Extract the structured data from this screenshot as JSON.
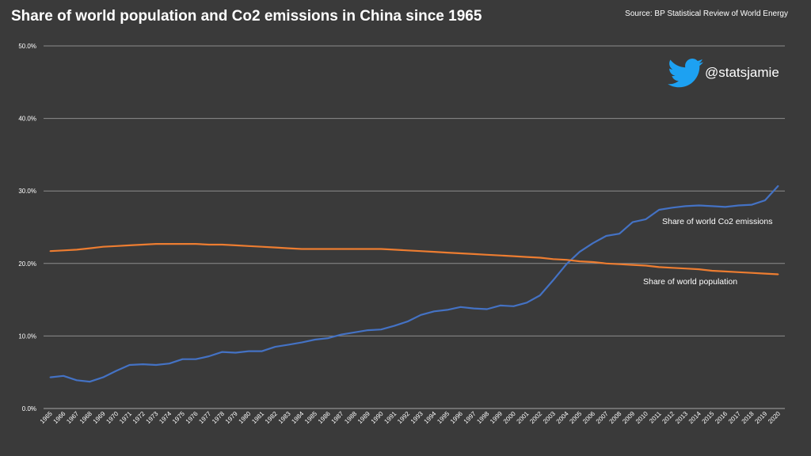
{
  "title": "Share of world population and Co2 emissions in China since 1965",
  "source": "Source: BP Statistical Review of World Energy",
  "handle": "@statsjamie",
  "icon": "twitter-bird-icon",
  "colors": {
    "background": "#3a3a3a",
    "emissions": "#4472c4",
    "population": "#ed7d31",
    "grid": "#8c8c8c",
    "text": "#ffffff",
    "bird": "#1da1f2"
  },
  "chart_data": {
    "type": "line",
    "title": "Share of world population and Co2 emissions in China since 1965",
    "xlabel": "",
    "ylabel": "",
    "ylim": [
      0,
      50
    ],
    "grid": true,
    "yticks": [
      "0.0%",
      "10.0%",
      "20.0%",
      "30.0%",
      "40.0%",
      "50.0%"
    ],
    "x": [
      "1965",
      "1966",
      "1967",
      "1968",
      "1969",
      "1970",
      "1971",
      "1972",
      "1973",
      "1974",
      "1975",
      "1976",
      "1977",
      "1978",
      "1979",
      "1980",
      "1981",
      "1982",
      "1983",
      "1984",
      "1985",
      "1986",
      "1987",
      "1988",
      "1989",
      "1990",
      "1991",
      "1992",
      "1993",
      "1994",
      "1995",
      "1996",
      "1997",
      "1998",
      "1999",
      "2000",
      "2001",
      "2002",
      "2003",
      "2004",
      "2005",
      "2006",
      "2007",
      "2008",
      "2009",
      "2010",
      "2011",
      "2012",
      "2013",
      "2014",
      "2015",
      "2016",
      "2017",
      "2018",
      "2019",
      "2020"
    ],
    "series": [
      {
        "name": "Share of world Co2 emissions",
        "label": "Share of world Co2 emissions",
        "values": [
          4.3,
          4.5,
          3.9,
          3.7,
          4.3,
          5.2,
          6.0,
          6.1,
          6.0,
          6.2,
          6.8,
          6.8,
          7.2,
          7.8,
          7.7,
          7.9,
          7.9,
          8.5,
          8.8,
          9.1,
          9.5,
          9.7,
          10.2,
          10.5,
          10.8,
          10.9,
          11.4,
          12.0,
          12.9,
          13.4,
          13.6,
          14.0,
          13.8,
          13.7,
          14.2,
          14.1,
          14.6,
          15.6,
          17.7,
          19.9,
          21.6,
          22.8,
          23.8,
          24.1,
          25.7,
          26.1,
          27.4,
          27.7,
          27.9,
          28.0,
          27.9,
          27.8,
          28.0,
          28.1,
          28.7,
          30.7
        ]
      },
      {
        "name": "Share of world population",
        "label": "Share of world population",
        "values": [
          21.7,
          21.8,
          21.9,
          22.1,
          22.3,
          22.4,
          22.5,
          22.6,
          22.7,
          22.7,
          22.7,
          22.7,
          22.6,
          22.6,
          22.5,
          22.4,
          22.3,
          22.2,
          22.1,
          22.0,
          22.0,
          22.0,
          22.0,
          22.0,
          22.0,
          22.0,
          21.9,
          21.8,
          21.7,
          21.6,
          21.5,
          21.4,
          21.3,
          21.2,
          21.1,
          21.0,
          20.9,
          20.8,
          20.6,
          20.5,
          20.3,
          20.2,
          20.0,
          19.9,
          19.8,
          19.7,
          19.5,
          19.4,
          19.3,
          19.2,
          19.0,
          18.9,
          18.8,
          18.7,
          18.6,
          18.5
        ]
      }
    ]
  }
}
